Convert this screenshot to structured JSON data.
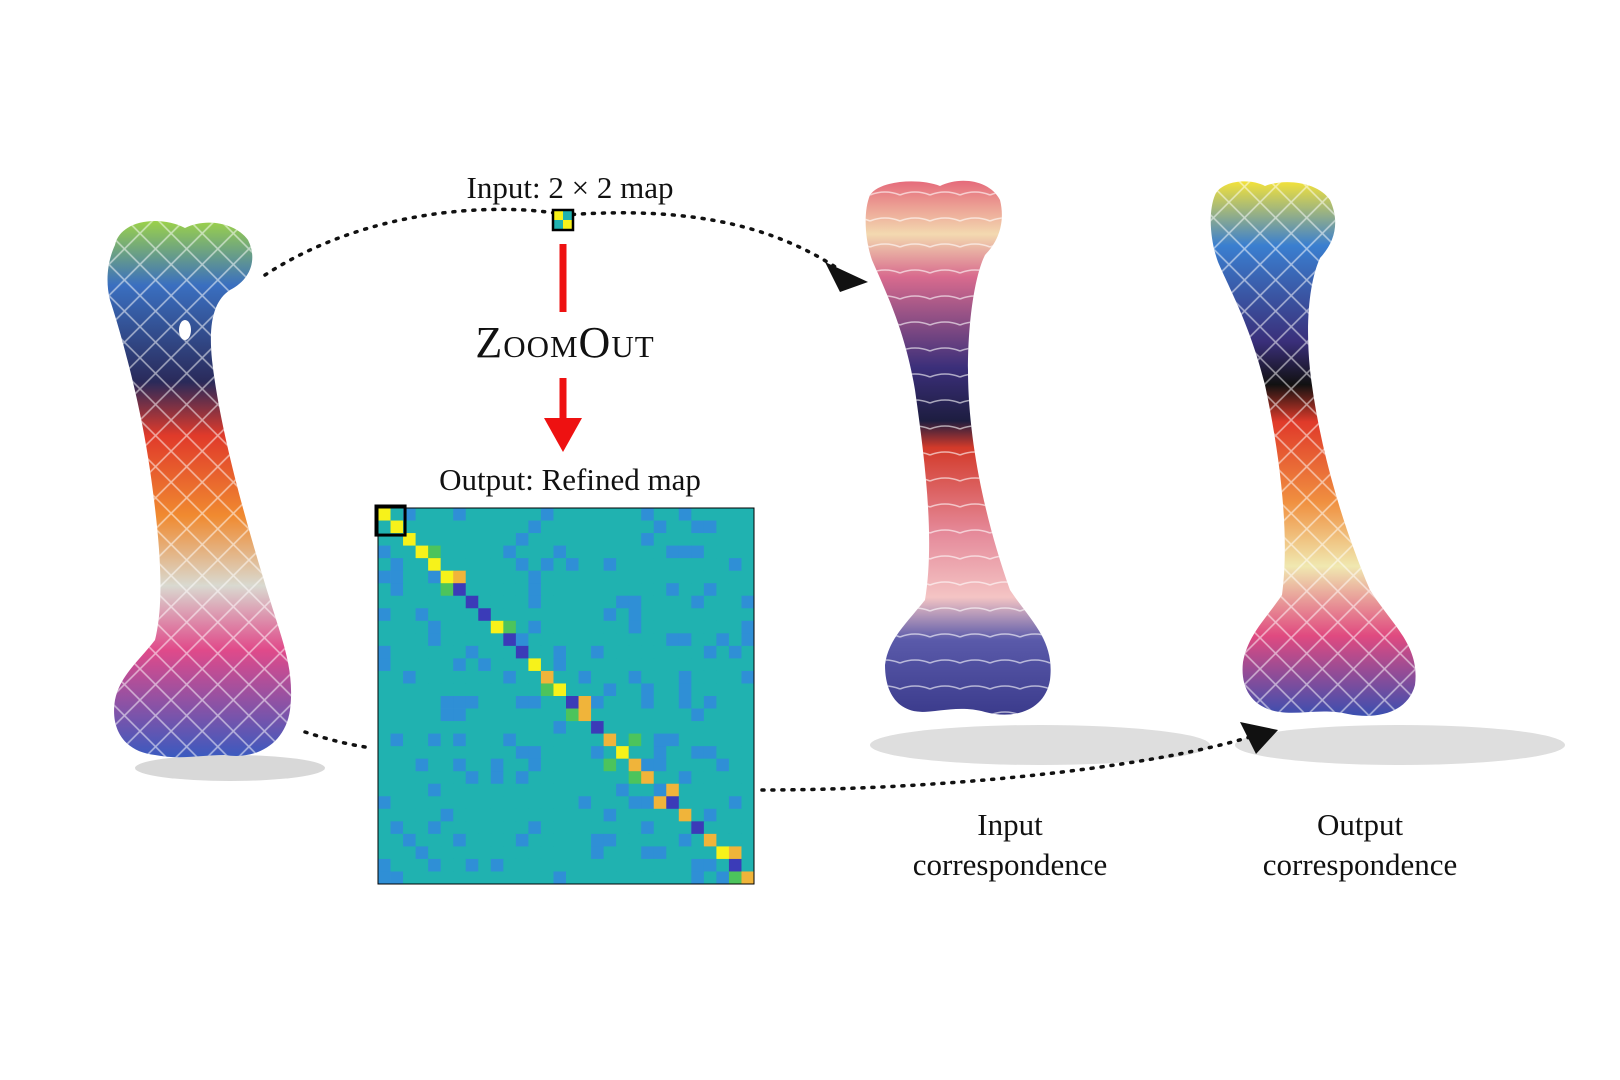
{
  "figure": {
    "input_label": "Input: 2 × 2 map",
    "method_label": "ZoomOut",
    "output_label": "Output: Refined map",
    "input_correspondence_label": [
      "Input",
      "correspondence"
    ],
    "output_correspondence_label": [
      "Output",
      "correspondence"
    ]
  },
  "matrix": {
    "size": 30,
    "highlight_block": 2,
    "colormap": [
      "#3b3bb8",
      "#2f8fd6",
      "#20b2b0",
      "#4cc45c",
      "#f0b43a",
      "#f7f21a"
    ],
    "background_value": 0.38,
    "diagonal_values": [
      1.0,
      1.0,
      0.95,
      0.95,
      0.9,
      0.92,
      0.0,
      0.05,
      0.0,
      0.9,
      0.0,
      0.05,
      0.9,
      0.8,
      0.9,
      0.0,
      0.82,
      0.05,
      0.85,
      0.9,
      0.82,
      0.85,
      0.1,
      0.05,
      0.82,
      0.08,
      0.85,
      0.9,
      0.05,
      0.85
    ],
    "off_diagonal": [
      [
        5,
        6,
        0.75
      ],
      [
        6,
        5,
        0.6
      ],
      [
        14,
        13,
        0.6
      ],
      [
        15,
        16,
        0.8
      ],
      [
        16,
        15,
        0.5
      ],
      [
        18,
        20,
        0.6
      ],
      [
        20,
        18,
        0.55
      ],
      [
        21,
        20,
        0.65
      ],
      [
        22,
        23,
        0.8
      ],
      [
        23,
        22,
        0.75
      ],
      [
        24,
        26,
        0.2
      ],
      [
        26,
        24,
        0.25
      ],
      [
        27,
        28,
        0.8
      ],
      [
        28,
        27,
        0.3
      ],
      [
        29,
        28,
        0.6
      ],
      [
        3,
        4,
        0.5
      ],
      [
        9,
        10,
        0.5
      ],
      [
        11,
        12,
        0.45
      ],
      [
        25,
        27,
        0.45
      ]
    ]
  },
  "colors": {
    "arrow_red": "#ee1111",
    "arrow_dotted": "#111111",
    "matrix_border": "#000000"
  }
}
